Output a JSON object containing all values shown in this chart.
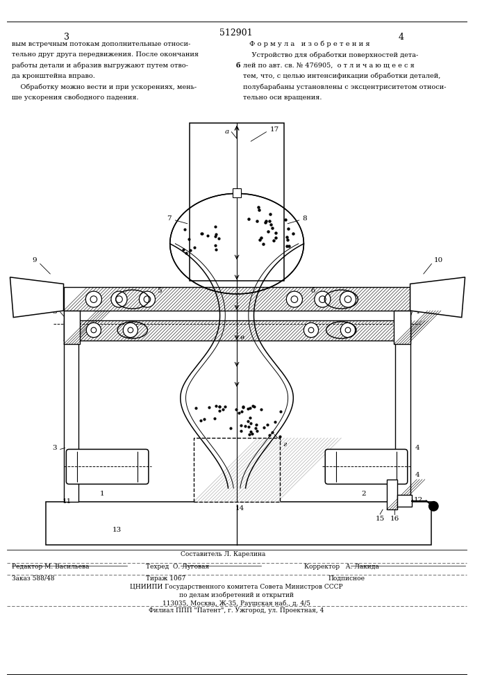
{
  "page_color": "#ffffff",
  "title_patent": "512901",
  "page_left": "3",
  "page_right": "4",
  "left_text_lines": [
    "вым встречным потокам дополнительные относи-",
    "тельно друг друга передвижения. После окончания",
    "работы детали и абразив выгружают путем отво-",
    "да кронштейна вправо.",
    "    Обработку можно вести и при ускорениях, мень-",
    "ше ускорения свободного падения."
  ],
  "right_header": "Ф о р м у л а   и з о б р е т е н и я",
  "right_text_lines": [
    "    Устройство для обработки поверхностей дета-",
    "лей по авт. св. № 476905,  о т л и ч а ю щ е е с я",
    "тем, что, с целью интенсификации обработки деталей,",
    "полубарабаны установлены с эксцентриситетом относи-",
    "тельно оси вращения."
  ],
  "footnote_sestavitel": "Составитель Л. Карелина",
  "editor_line": "Редактор М. Васильева",
  "techred_line": "Техред  О. Луговая",
  "corrector_line": "Корректор   А. Лакида",
  "order_line": "Заказ 588/48",
  "tirazh_line": "Тираж 1067",
  "podpisnoe_line": "Подписное",
  "org_line1": "ЦНИИПИ Государственного комитета Совета Министров СССР",
  "org_line2": "по делам изобретений и открытий",
  "org_line3": "113035, Москва, Ж-35, Раушская наб., д. 4/5",
  "org_line4": "Филиал ППП \"Патент\", г. Ужгород, ул. Проектная, 4"
}
